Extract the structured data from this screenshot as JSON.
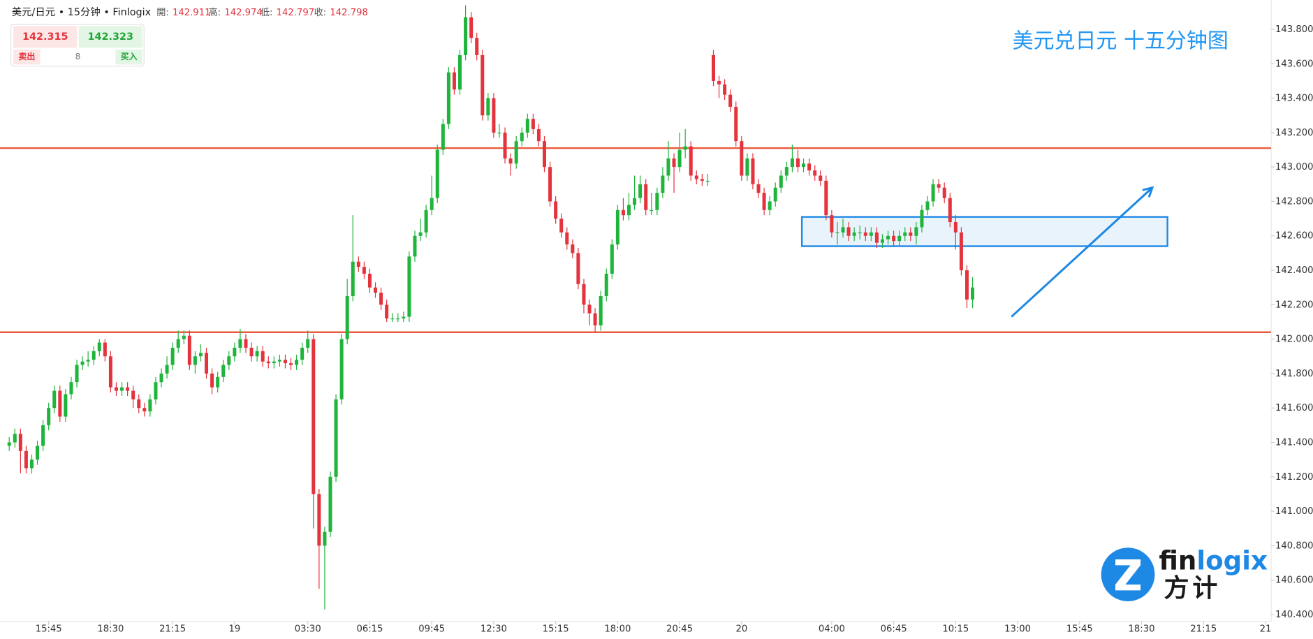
{
  "header": {
    "symbol": "美元/日元 • 15分钟 • Finlogix",
    "open_label": "開:",
    "open": "142.911",
    "high_label": "高:",
    "high": "142.974",
    "low_label": "低:",
    "low": "142.797",
    "close_label": "收:",
    "close": "142.798"
  },
  "quote": {
    "sell_price": "142.315",
    "buy_price": "142.323",
    "spread": "8",
    "sell_label": "卖出",
    "buy_label": "买入"
  },
  "logo": {
    "part1": "fin",
    "part2": "logix",
    "cn": "方计"
  },
  "chart_data": {
    "type": "candlestick",
    "title": "美元兑日元 十五分钟图",
    "up_color": "#1fb43b",
    "down_color": "#e4333d",
    "xlim": [
      -0.45,
      224
    ],
    "ylim": [
      140.37,
      143.97
    ],
    "xticks": [
      {
        "value": 7,
        "label": "15:45"
      },
      {
        "value": 18,
        "label": "18:30"
      },
      {
        "value": 29,
        "label": "21:15"
      },
      {
        "value": 40,
        "label": "19"
      },
      {
        "value": 53,
        "label": "03:30"
      },
      {
        "value": 64,
        "label": "06:15"
      },
      {
        "value": 75,
        "label": "09:45"
      },
      {
        "value": 86,
        "label": "12:30"
      },
      {
        "value": 97,
        "label": "15:15"
      },
      {
        "value": 108,
        "label": "18:00"
      },
      {
        "value": 119,
        "label": "20:45"
      },
      {
        "value": 130,
        "label": "20"
      },
      {
        "value": 146,
        "label": "04:00"
      },
      {
        "value": 157,
        "label": "06:45"
      },
      {
        "value": 168,
        "label": "10:15"
      },
      {
        "value": 179,
        "label": "13:00"
      },
      {
        "value": 190,
        "label": "15:45"
      },
      {
        "value": 201,
        "label": "18:30"
      },
      {
        "value": 212,
        "label": "21:15"
      },
      {
        "value": 223,
        "label": "21"
      }
    ],
    "yticks": [
      {
        "value": 140.4,
        "label": "140.400"
      },
      {
        "value": 140.6,
        "label": "140.600"
      },
      {
        "value": 140.8,
        "label": "140.800"
      },
      {
        "value": 141.0,
        "label": "141.000"
      },
      {
        "value": 141.2,
        "label": "141.200"
      },
      {
        "value": 141.4,
        "label": "141.400"
      },
      {
        "value": 141.6,
        "label": "141.600"
      },
      {
        "value": 141.8,
        "label": "141.800"
      },
      {
        "value": 142.0,
        "label": "142.000"
      },
      {
        "value": 142.2,
        "label": "142.200"
      },
      {
        "value": 142.4,
        "label": "142.400"
      },
      {
        "value": 142.6,
        "label": "142.600"
      },
      {
        "value": 142.8,
        "label": "142.800"
      },
      {
        "value": 143.0,
        "label": "143.000"
      },
      {
        "value": 143.2,
        "label": "143.200"
      },
      {
        "value": 143.4,
        "label": "143.400"
      },
      {
        "value": 143.6,
        "label": "143.600"
      },
      {
        "value": 143.8,
        "label": "143.800"
      }
    ],
    "open": [
      141.38,
      141.4,
      141.45,
      141.35,
      141.25,
      141.3,
      141.38,
      141.5,
      141.6,
      141.7,
      141.55,
      141.68,
      141.75,
      141.85,
      141.87,
      141.88,
      141.93,
      141.98,
      141.9,
      141.72,
      141.7,
      141.72,
      141.7,
      141.65,
      141.6,
      141.58,
      141.65,
      141.75,
      141.8,
      141.85,
      141.95,
      142.0,
      142.02,
      141.85,
      141.9,
      141.92,
      141.8,
      141.72,
      141.78,
      141.85,
      141.9,
      141.95,
      142.0,
      141.95,
      141.9,
      141.93,
      141.87,
      141.86,
      141.87,
      141.88,
      141.86,
      141.85,
      141.88,
      141.95,
      142.0,
      141.1,
      140.8,
      140.88,
      141.2,
      141.65,
      142.0,
      142.25,
      142.45,
      142.42,
      142.38,
      142.3,
      142.27,
      142.2,
      142.12,
      142.12,
      142.12,
      142.13,
      142.48,
      142.6,
      142.62,
      142.75,
      142.82,
      143.1,
      143.25,
      143.55,
      143.45,
      143.65,
      143.87,
      143.75,
      143.65,
      143.3,
      143.4,
      143.2,
      143.2,
      143.05,
      143.02,
      143.15,
      143.2,
      143.28,
      143.22,
      143.15,
      143.0,
      142.8,
      142.7,
      142.62,
      142.55,
      142.5,
      142.32,
      142.2,
      142.15,
      142.08,
      142.25,
      142.38,
      142.55,
      142.75,
      142.72,
      142.78,
      142.82,
      142.9,
      142.75,
      142.75,
      142.85,
      142.95,
      143.05,
      143.0,
      143.1,
      143.12,
      142.95,
      142.93,
      142.92,
      143.65,
      143.5,
      143.48,
      143.42,
      143.35,
      143.15,
      142.95,
      143.05,
      142.9,
      142.85,
      142.75,
      142.8,
      142.88,
      142.95,
      143.0,
      143.05,
      143.0,
      143.02,
      142.98,
      142.95,
      142.92,
      142.72,
      142.62,
      142.62,
      142.65,
      142.6,
      142.62,
      142.62,
      142.6,
      142.62,
      142.56,
      142.58,
      142.6,
      142.57,
      142.6,
      142.62,
      142.6,
      142.65,
      142.75,
      142.8,
      142.9,
      142.88,
      142.82,
      142.68,
      142.62,
      142.4,
      142.23
    ],
    "close": [
      141.4,
      141.45,
      141.35,
      141.25,
      141.3,
      141.38,
      141.5,
      141.6,
      141.7,
      141.55,
      141.68,
      141.75,
      141.85,
      141.87,
      141.88,
      141.93,
      141.98,
      141.9,
      141.72,
      141.7,
      141.72,
      141.7,
      141.65,
      141.6,
      141.58,
      141.65,
      141.75,
      141.8,
      141.85,
      141.95,
      142.0,
      142.02,
      141.85,
      141.9,
      141.92,
      141.8,
      141.72,
      141.78,
      141.85,
      141.9,
      141.95,
      142.0,
      141.95,
      141.9,
      141.93,
      141.87,
      141.86,
      141.87,
      141.88,
      141.86,
      141.85,
      141.88,
      141.95,
      142.0,
      141.1,
      140.8,
      140.88,
      141.2,
      141.65,
      142.0,
      142.25,
      142.45,
      142.42,
      142.38,
      142.3,
      142.27,
      142.2,
      142.12,
      142.12,
      142.12,
      142.13,
      142.48,
      142.6,
      142.62,
      142.75,
      142.82,
      143.1,
      143.25,
      143.55,
      143.45,
      143.65,
      143.87,
      143.75,
      143.65,
      143.3,
      143.4,
      143.2,
      143.2,
      143.05,
      143.02,
      143.15,
      143.2,
      143.28,
      143.22,
      143.15,
      143.0,
      142.8,
      142.7,
      142.62,
      142.55,
      142.5,
      142.32,
      142.2,
      142.15,
      142.08,
      142.25,
      142.38,
      142.55,
      142.75,
      142.72,
      142.78,
      142.82,
      142.9,
      142.75,
      142.75,
      142.85,
      142.95,
      143.05,
      143.0,
      143.1,
      143.12,
      142.95,
      142.93,
      142.92,
      142.92,
      143.5,
      143.48,
      143.42,
      143.35,
      143.15,
      142.95,
      143.05,
      142.9,
      142.85,
      142.75,
      142.8,
      142.88,
      142.95,
      143.0,
      143.05,
      143.0,
      143.02,
      142.98,
      142.95,
      142.92,
      142.72,
      142.62,
      142.62,
      142.65,
      142.6,
      142.62,
      142.62,
      142.6,
      142.62,
      142.56,
      142.58,
      142.6,
      142.57,
      142.6,
      142.62,
      142.6,
      142.65,
      142.75,
      142.8,
      142.9,
      142.88,
      142.82,
      142.68,
      142.62,
      142.4,
      142.23,
      142.3
    ],
    "high": [
      141.43,
      141.48,
      141.48,
      141.38,
      141.33,
      141.41,
      141.53,
      141.63,
      141.73,
      141.73,
      141.71,
      141.78,
      141.88,
      141.9,
      141.93,
      141.96,
      142.0,
      142.0,
      141.93,
      141.75,
      141.75,
      141.75,
      141.73,
      141.68,
      141.63,
      141.68,
      141.78,
      141.83,
      141.9,
      141.98,
      142.05,
      142.05,
      142.05,
      141.93,
      141.97,
      141.95,
      141.83,
      141.81,
      141.88,
      141.93,
      141.98,
      142.06,
      142.03,
      141.98,
      141.96,
      141.96,
      141.9,
      141.9,
      141.91,
      141.91,
      141.89,
      141.91,
      141.98,
      142.05,
      142.03,
      141.13,
      140.91,
      141.23,
      141.68,
      142.03,
      142.35,
      142.72,
      142.48,
      142.45,
      142.41,
      142.33,
      142.3,
      142.23,
      142.15,
      142.15,
      142.16,
      142.51,
      142.63,
      142.7,
      142.78,
      142.95,
      143.13,
      143.28,
      143.58,
      143.58,
      143.68,
      143.94,
      143.9,
      143.78,
      143.68,
      143.43,
      143.43,
      143.25,
      143.23,
      143.08,
      143.18,
      143.23,
      143.31,
      143.31,
      143.25,
      143.18,
      143.03,
      142.83,
      142.73,
      142.65,
      142.58,
      142.53,
      142.35,
      142.23,
      142.18,
      142.28,
      142.41,
      142.58,
      142.78,
      142.82,
      142.85,
      142.95,
      142.95,
      142.93,
      142.85,
      142.88,
      143.0,
      143.15,
      143.08,
      143.2,
      143.22,
      143.15,
      142.98,
      142.96,
      142.96,
      143.68,
      143.53,
      143.51,
      143.45,
      143.38,
      143.18,
      143.08,
      143.08,
      142.93,
      142.88,
      142.83,
      142.91,
      142.98,
      143.03,
      143.13,
      143.1,
      143.05,
      143.05,
      143.01,
      142.98,
      142.95,
      142.75,
      142.68,
      142.7,
      142.68,
      142.65,
      142.66,
      142.65,
      142.65,
      142.65,
      142.61,
      142.63,
      142.63,
      142.63,
      142.65,
      142.65,
      142.68,
      142.78,
      142.83,
      142.93,
      142.93,
      142.91,
      142.85,
      142.72,
      142.65,
      142.43,
      142.36
    ],
    "low": [
      141.35,
      141.37,
      141.22,
      141.22,
      141.22,
      141.27,
      141.35,
      141.47,
      141.57,
      141.52,
      141.52,
      141.65,
      141.72,
      141.82,
      141.84,
      141.85,
      141.9,
      141.87,
      141.69,
      141.67,
      141.67,
      141.67,
      141.6,
      141.57,
      141.55,
      141.55,
      141.62,
      141.72,
      141.77,
      141.82,
      141.92,
      141.97,
      141.82,
      141.8,
      141.87,
      141.77,
      141.68,
      141.69,
      141.75,
      141.82,
      141.87,
      141.92,
      141.92,
      141.87,
      141.87,
      141.84,
      141.83,
      141.83,
      141.84,
      141.83,
      141.82,
      141.82,
      141.85,
      141.92,
      140.9,
      140.55,
      140.43,
      140.85,
      141.17,
      141.62,
      141.97,
      142.22,
      142.39,
      142.35,
      142.27,
      142.24,
      142.17,
      142.1,
      142.1,
      142.1,
      142.1,
      142.1,
      142.45,
      142.57,
      142.59,
      142.72,
      142.79,
      143.07,
      143.22,
      143.42,
      143.42,
      143.62,
      143.72,
      143.62,
      143.27,
      143.27,
      143.17,
      143.17,
      143.02,
      142.95,
      142.99,
      143.12,
      143.17,
      143.19,
      143.12,
      142.97,
      142.77,
      142.67,
      142.59,
      142.52,
      142.47,
      142.29,
      142.15,
      142.08,
      142.04,
      142.05,
      142.22,
      142.35,
      142.52,
      142.69,
      142.69,
      142.75,
      142.79,
      142.72,
      142.72,
      142.72,
      142.82,
      142.92,
      142.85,
      142.97,
      143.05,
      142.92,
      142.9,
      142.89,
      142.89,
      143.47,
      143.4,
      143.39,
      143.32,
      143.12,
      142.92,
      142.92,
      142.87,
      142.82,
      142.72,
      142.72,
      142.77,
      142.85,
      142.92,
      142.97,
      142.97,
      142.97,
      142.95,
      142.92,
      142.89,
      142.69,
      142.59,
      142.55,
      142.59,
      142.57,
      142.57,
      142.58,
      142.57,
      142.57,
      142.53,
      142.53,
      142.55,
      142.54,
      142.54,
      142.57,
      142.57,
      142.55,
      142.62,
      142.72,
      142.77,
      142.85,
      142.79,
      142.65,
      142.52,
      142.37,
      142.18,
      142.18
    ],
    "levels": [
      {
        "value": 143.11,
        "color": "#ea5a3c"
      },
      {
        "value": 142.04,
        "color": "#ea5a3c"
      }
    ],
    "box": {
      "x": [
        140.7,
        205.6
      ],
      "y": [
        142.54,
        142.71
      ],
      "color": "#1e88e5"
    },
    "arrow": {
      "x": [
        177.9,
        202.9
      ],
      "y": [
        142.13,
        142.88
      ],
      "color": "#1e88e5"
    }
  }
}
